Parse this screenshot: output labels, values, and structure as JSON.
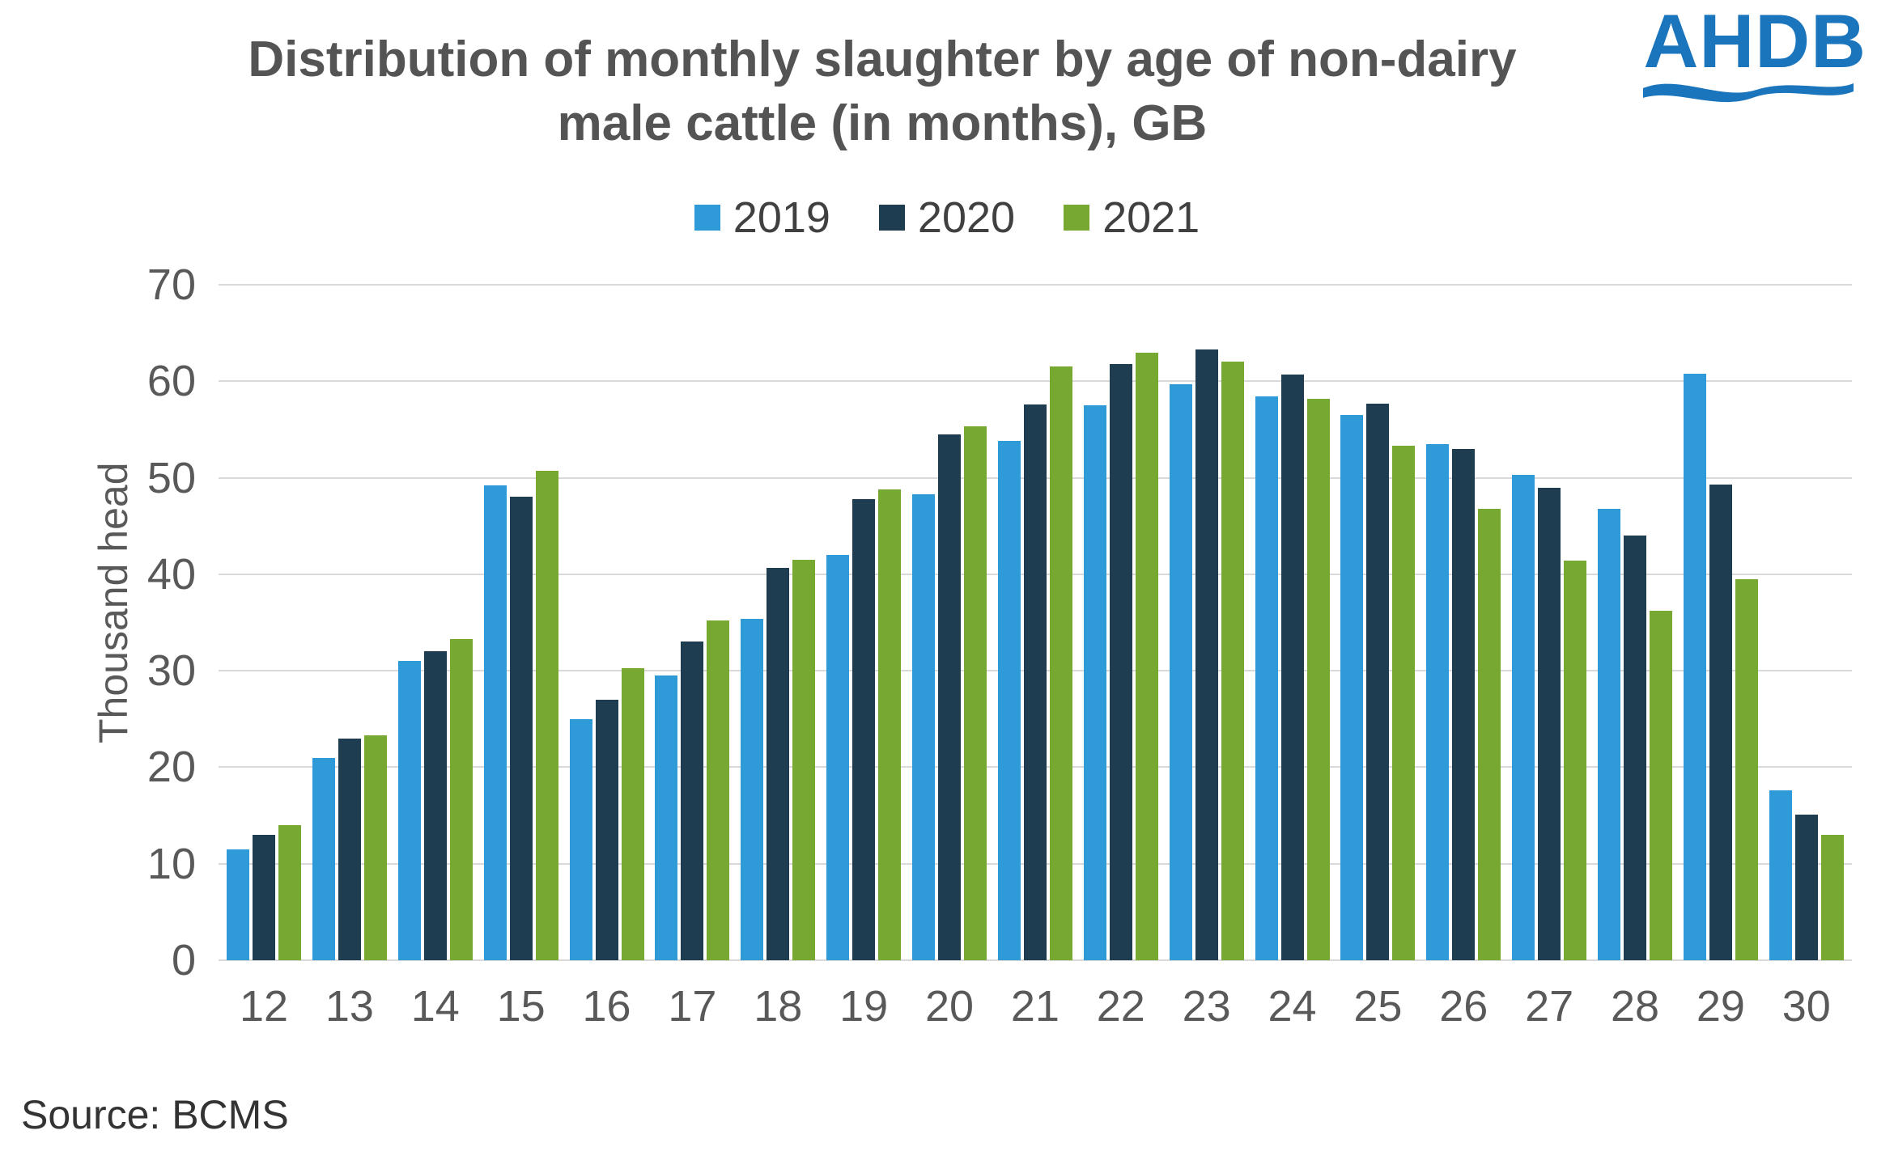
{
  "header": {
    "title_line1": "Distribution of monthly slaughter by age of non-dairy",
    "title_line2": "male cattle (in months), GB",
    "logo_text": "AHDB"
  },
  "source": "Source: BCMS",
  "chart_data": {
    "type": "bar",
    "title": "Distribution of monthly slaughter by age of non-dairy male cattle (in months), GB",
    "xlabel": "",
    "ylabel": "Thousand head",
    "ylim": [
      0,
      70
    ],
    "yticks": [
      0,
      10,
      20,
      30,
      40,
      50,
      60,
      70
    ],
    "grid": true,
    "legend_position": "top",
    "categories": [
      12,
      13,
      14,
      15,
      16,
      17,
      18,
      19,
      20,
      21,
      22,
      23,
      24,
      25,
      26,
      27,
      28,
      29,
      30
    ],
    "series": [
      {
        "name": "2019",
        "color": "#2E9BD8",
        "values": [
          11.5,
          21,
          31,
          49.2,
          25,
          29.5,
          35.4,
          42,
          48.3,
          53.8,
          57.5,
          59.7,
          58.4,
          56.5,
          53.5,
          50.3,
          46.8,
          60.8,
          17.6
        ]
      },
      {
        "name": "2020",
        "color": "#1F3D50",
        "values": [
          13,
          23,
          32,
          48,
          27,
          33,
          40.7,
          47.8,
          54.5,
          57.6,
          61.8,
          63.3,
          60.7,
          57.7,
          53,
          49,
          44,
          49.3,
          15.1
        ]
      },
      {
        "name": "2021",
        "color": "#77A832",
        "values": [
          14,
          23.3,
          33.3,
          50.7,
          30.3,
          35.2,
          41.5,
          48.8,
          55.3,
          61.5,
          63,
          62,
          58.2,
          53.3,
          46.8,
          41.4,
          36.2,
          39.5,
          13
        ]
      }
    ]
  }
}
